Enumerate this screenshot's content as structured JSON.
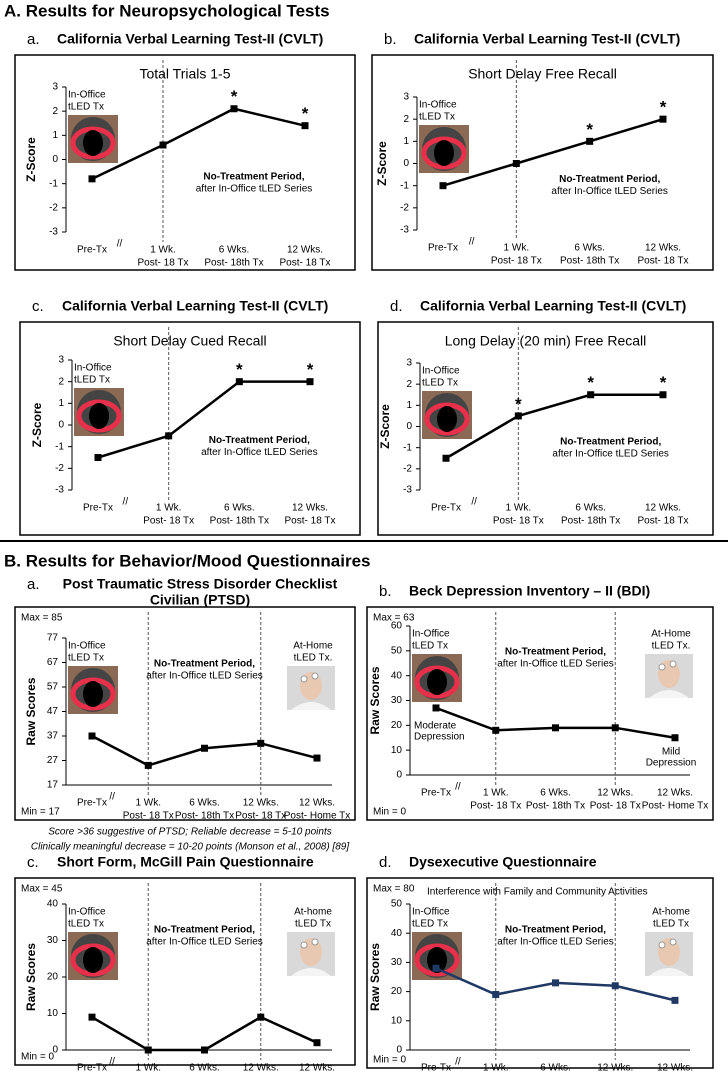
{
  "headings": [
    "A. Results for Neuropsychological Tests",
    "B. Results for Behavior/Mood Questionnaires"
  ],
  "chart_data": [
    {
      "type": "line",
      "panel": "a.",
      "title": "California Verbal Learning Test-II (CVLT)",
      "subtitle": "Total Trials 1-5",
      "ylabel": "Z-Score",
      "categories": [
        [
          "Pre-Tx"
        ],
        [
          "1 Wk.",
          "Post- 18 Tx"
        ],
        [
          "6 Wks.",
          "Post- 18th Tx"
        ],
        [
          "12 Wks.",
          "Post- 18 Tx"
        ]
      ],
      "values": [
        -0.8,
        0.6,
        2.1,
        1.4
      ],
      "significance": [
        null,
        null,
        "*",
        "*"
      ],
      "color": "#000000",
      "ylim": [
        -3,
        3
      ],
      "yticks": [
        -3,
        -2,
        -1,
        0,
        1,
        2,
        3
      ],
      "axis_break": "//",
      "left_note": [
        "In-Office",
        "tLED Tx"
      ],
      "middle_note": [
        "No-Treatment Period,",
        "after In-Office tLED Series"
      ]
    },
    {
      "type": "line",
      "panel": "b.",
      "title": "California Verbal Learning Test-II (CVLT)",
      "subtitle": "Short Delay Free Recall",
      "ylabel": "Z-Score",
      "categories": [
        [
          "Pre-Tx"
        ],
        [
          "1 Wk.",
          "Post- 18 Tx"
        ],
        [
          "6 Wks.",
          "Post- 18th Tx"
        ],
        [
          "12 Wks.",
          "Post- 18 Tx"
        ]
      ],
      "values": [
        -1,
        0,
        1,
        2
      ],
      "significance": [
        null,
        null,
        "*",
        "*"
      ],
      "color": "#000000",
      "ylim": [
        -3,
        3
      ],
      "yticks": [
        -3,
        -2,
        -1,
        0,
        1,
        2,
        3
      ],
      "axis_break": "//",
      "left_note": [
        "In-Office",
        "tLED Tx"
      ],
      "middle_note": [
        "No-Treatment Period,",
        "after In-Office tLED Series"
      ]
    },
    {
      "type": "line",
      "panel": "c.",
      "title": "California Verbal Learning Test-II (CVLT)",
      "subtitle": "Short Delay Cued Recall",
      "ylabel": "Z-Score",
      "categories": [
        [
          "Pre-Tx"
        ],
        [
          "1 Wk.",
          "Post- 18 Tx"
        ],
        [
          "6 Wks.",
          "Post- 18th Tx"
        ],
        [
          "12 Wks.",
          "Post- 18 Tx"
        ]
      ],
      "values": [
        -1.5,
        -0.5,
        2,
        2
      ],
      "significance": [
        null,
        null,
        "*",
        "*"
      ],
      "color": "#000000",
      "ylim": [
        -3,
        3
      ],
      "yticks": [
        -3,
        -2,
        -1,
        0,
        1,
        2,
        3
      ],
      "axis_break": "//",
      "left_note": [
        "In-Office",
        "tLED Tx"
      ],
      "middle_note": [
        "No-Treatment Period,",
        "after In-Office tLED Series"
      ]
    },
    {
      "type": "line",
      "panel": "d.",
      "title": "California Verbal Learning Test-II (CVLT)",
      "subtitle": "Long Delay (20 min) Free Recall",
      "ylabel": "Z-Score",
      "categories": [
        [
          "Pre-Tx"
        ],
        [
          "1 Wk.",
          "Post- 18 Tx"
        ],
        [
          "6 Wks.",
          "Post- 18th Tx"
        ],
        [
          "12 Wks.",
          "Post- 18 Tx"
        ]
      ],
      "values": [
        -1.5,
        0.5,
        1.5,
        1.5
      ],
      "significance": [
        null,
        "*",
        "*",
        "*"
      ],
      "color": "#000000",
      "ylim": [
        -3,
        3
      ],
      "yticks": [
        -3,
        -2,
        -1,
        0,
        1,
        2,
        3
      ],
      "axis_break": "//",
      "left_note": [
        "In-Office",
        "tLED Tx"
      ],
      "middle_note": [
        "No-Treatment Period,",
        "after In-Office tLED Series"
      ]
    },
    {
      "type": "line",
      "panel": "a.",
      "title": [
        "Post Traumatic Stress Disorder Checklist",
        "Civilian (PTSD)"
      ],
      "ylabel": "Raw Scores",
      "max_label": "Max = 85",
      "min_label": "Min = 17",
      "categories": [
        [
          "Pre-Tx"
        ],
        [
          "1 Wk.",
          "Post- 18 Tx"
        ],
        [
          "6 Wks.",
          "Post- 18th Tx"
        ],
        [
          "12 Wks.",
          "Post- 18 Tx"
        ],
        [
          "12 Wks.",
          "Post- Home Tx"
        ]
      ],
      "values": [
        37,
        25,
        32,
        34,
        28
      ],
      "color": "#000000",
      "ylim": [
        17,
        77
      ],
      "yticks": [
        17,
        27,
        37,
        47,
        57,
        67,
        77
      ],
      "axis_break": "//",
      "left_note": [
        "In-Office",
        "tLED Tx"
      ],
      "middle_note": [
        "No-Treatment Period,",
        "after In-Office tLED Series"
      ],
      "right_note": [
        "At-Home",
        "tLED Tx."
      ],
      "notes": [
        "Score >36 suggestive of PTSD; Reliable decrease = 5-10 points",
        "Clinically meaningful decrease = 10-20 points (Monson et al., 2008) [89]"
      ]
    },
    {
      "type": "line",
      "panel": "b.",
      "title": "Beck Depression Inventory – II (BDI)",
      "ylabel": "Raw Scores",
      "max_label": "Max = 63",
      "min_label": "Min = 0",
      "categories": [
        [
          "Pre-Tx"
        ],
        [
          "1 Wk.",
          "Post- 18 Tx"
        ],
        [
          "6 Wks.",
          "Post- 18th Tx"
        ],
        [
          "12 Wks.",
          "Post- 18 Tx"
        ],
        [
          "12 Wks.",
          "Post- Home Tx"
        ]
      ],
      "values": [
        27,
        18,
        19,
        19,
        15
      ],
      "value_notes": [
        [
          "Moderate",
          "Depression"
        ],
        null,
        null,
        null,
        [
          "Mild",
          "Depression"
        ]
      ],
      "color": "#000000",
      "ylim": [
        0,
        60
      ],
      "yticks": [
        0,
        10,
        20,
        30,
        40,
        50,
        60
      ],
      "axis_break": "//",
      "left_note": [
        "In-Office",
        "tLED Tx"
      ],
      "middle_note": [
        "No-Treatment Period,",
        "after In-Office tLED Series"
      ],
      "right_note": [
        "At-Home",
        "tLED Tx."
      ]
    },
    {
      "type": "line",
      "panel": "c.",
      "title": "Short Form, McGill Pain Questionnaire",
      "ylabel": "Raw Scores",
      "max_label": "Max = 45",
      "min_label": "Min = 0",
      "categories": [
        [
          "Pre-Tx"
        ],
        [
          "1 Wk.",
          "Post- 18 Tx"
        ],
        [
          "6 Wks.",
          "Post- 18th Tx"
        ],
        [
          "12 Wks.",
          "Post- 18 Tx"
        ],
        [
          "12 Wks.",
          "Post- Home Tx"
        ]
      ],
      "values": [
        9,
        0,
        0,
        9,
        2
      ],
      "color": "#000000",
      "ylim": [
        0,
        40
      ],
      "yticks": [
        0,
        10,
        20,
        30,
        40
      ],
      "axis_break": "//",
      "left_note": [
        "In-Office",
        "tLED Tx"
      ],
      "middle_note": [
        "No-Treatment Period,",
        "after In-Office tLED Series"
      ],
      "right_note": [
        "At-home",
        "tLED Tx"
      ]
    },
    {
      "type": "line",
      "panel": "d.",
      "title": "Dysexecutive Questionnaire",
      "subtitle": "Interference with Family and Community Activities",
      "ylabel": "Raw Scores",
      "max_label": "Max = 80",
      "min_label": "Min = 0",
      "categories": [
        [
          "Pre-Tx"
        ],
        [
          "1 Wk.",
          "Post- 18 Tx"
        ],
        [
          "6 Wks.",
          "Post- 18th Tx"
        ],
        [
          "12 Wks.",
          "Post- 18 Tx"
        ],
        [
          "12 Wks.",
          "Post- Home Tx"
        ]
      ],
      "values": [
        28,
        19,
        23,
        22,
        17
      ],
      "color": "#1f3864",
      "ylim": [
        0,
        50
      ],
      "yticks": [
        0,
        10,
        20,
        30,
        40,
        50
      ],
      "axis_break": "//",
      "left_note": [
        "In-Office",
        "tLED Tx"
      ],
      "middle_note": [
        "No-Treatment Period,",
        "after In-Office tLED Series"
      ],
      "right_note": [
        "At-home",
        "tLED Tx"
      ]
    }
  ]
}
